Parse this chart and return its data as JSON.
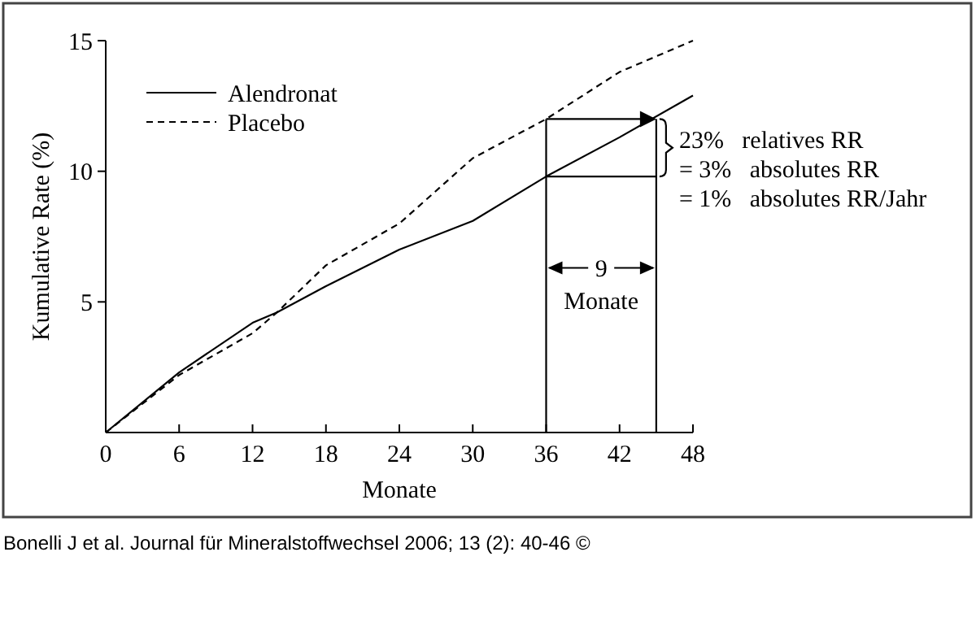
{
  "chart_data": {
    "type": "line",
    "xlabel": "Monate",
    "ylabel": "Kumulative Rate (%)",
    "xlim": [
      0,
      48
    ],
    "xticks": [
      0,
      6,
      12,
      18,
      24,
      30,
      36,
      42,
      48
    ],
    "ylim": [
      0,
      15
    ],
    "yticks": [
      5,
      10,
      15
    ],
    "legend": "top left",
    "grid": false,
    "series": [
      {
        "name": "Alendronat",
        "color": "#000000",
        "line_style": "solid",
        "x": [
          0,
          6,
          12,
          14,
          18,
          24,
          30,
          36,
          42,
          48
        ],
        "values": [
          0,
          2.3,
          4.2,
          4.6,
          5.6,
          7,
          8.1,
          9.8,
          11.3,
          12.9
        ]
      },
      {
        "name": "Placebo",
        "color": "#000000",
        "line_style": "dashed",
        "x": [
          0,
          6,
          12,
          14,
          18,
          24,
          30,
          36,
          42,
          48
        ],
        "values": [
          0,
          2.2,
          3.8,
          4.6,
          6.4,
          8,
          10.5,
          12,
          13.8,
          15
        ]
      }
    ],
    "ref_lines": [
      {
        "axis": "x",
        "value": 36
      },
      {
        "axis": "x",
        "value": 45
      },
      {
        "axis": "y",
        "value": 12
      },
      {
        "axis": "y",
        "value": 9.8
      }
    ],
    "annotations": [
      "23%   relatives RR",
      "= 3%   absolutes RR",
      "= 1%   absolutes RR/Jahr",
      {
        "text": "9",
        "x": 45,
        "y": 6.3
      },
      "Monate",
      "Bonelli J et al. Journal für Mineralstoffwechsel 2006; 13 (2): 40-46 ©"
    ]
  }
}
